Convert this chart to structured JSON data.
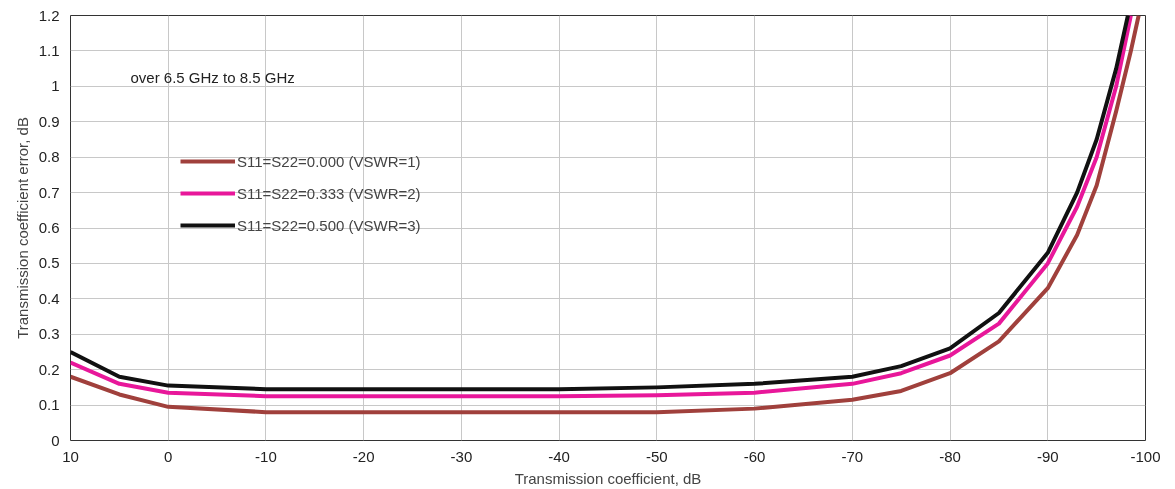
{
  "chart_data": {
    "type": "line",
    "xlabel": "Transmission coefficient, dB",
    "ylabel": "Transmission coefficient error, dB",
    "annotations": [
      "over 6.5 GHz to 8.5 GHz"
    ],
    "xlim": [
      10,
      -100
    ],
    "ylim": [
      0,
      1.2
    ],
    "xticks": [
      10,
      0,
      -10,
      -20,
      -30,
      -40,
      -50,
      -60,
      -70,
      -80,
      -90,
      -100
    ],
    "yticks": [
      0,
      0.1,
      0.2,
      0.3,
      0.4,
      0.5,
      0.6,
      0.7,
      0.8,
      0.9,
      1,
      1.1,
      1.2
    ],
    "grid": true,
    "legend": "top left",
    "line_style": "solid",
    "marker": "none",
    "series": [
      {
        "name": "S11=S22=0.000 (VSWR=1)",
        "color": "#a0403c",
        "x": [
          10,
          5,
          0,
          -10,
          -20,
          -30,
          -40,
          -50,
          -60,
          -70,
          -75,
          -80,
          -85,
          -90,
          -93,
          -95,
          -97,
          -98.5,
          -99.3
        ],
        "values": [
          0.18,
          0.13,
          0.095,
          0.08,
          0.08,
          0.08,
          0.08,
          0.08,
          0.09,
          0.115,
          0.14,
          0.19,
          0.28,
          0.43,
          0.58,
          0.72,
          0.93,
          1.1,
          1.2
        ]
      },
      {
        "name": "S11=S22=0.333 (VSWR=2)",
        "color": "#e8179a",
        "x": [
          10,
          5,
          0,
          -10,
          -20,
          -30,
          -40,
          -50,
          -60,
          -70,
          -75,
          -80,
          -85,
          -90,
          -93,
          -95,
          -97,
          -98.5
        ],
        "values": [
          0.22,
          0.16,
          0.135,
          0.125,
          0.125,
          0.125,
          0.125,
          0.128,
          0.135,
          0.16,
          0.19,
          0.24,
          0.33,
          0.5,
          0.66,
          0.8,
          1.0,
          1.2
        ]
      },
      {
        "name": "S11=S22=0.500 (VSWR=3)",
        "color": "#111111",
        "x": [
          10,
          5,
          0,
          -10,
          -20,
          -30,
          -40,
          -50,
          -60,
          -70,
          -75,
          -80,
          -85,
          -90,
          -93,
          -95,
          -97,
          -98.2
        ],
        "values": [
          0.25,
          0.18,
          0.155,
          0.145,
          0.145,
          0.145,
          0.145,
          0.15,
          0.16,
          0.18,
          0.21,
          0.26,
          0.36,
          0.53,
          0.7,
          0.85,
          1.05,
          1.2
        ]
      }
    ]
  }
}
